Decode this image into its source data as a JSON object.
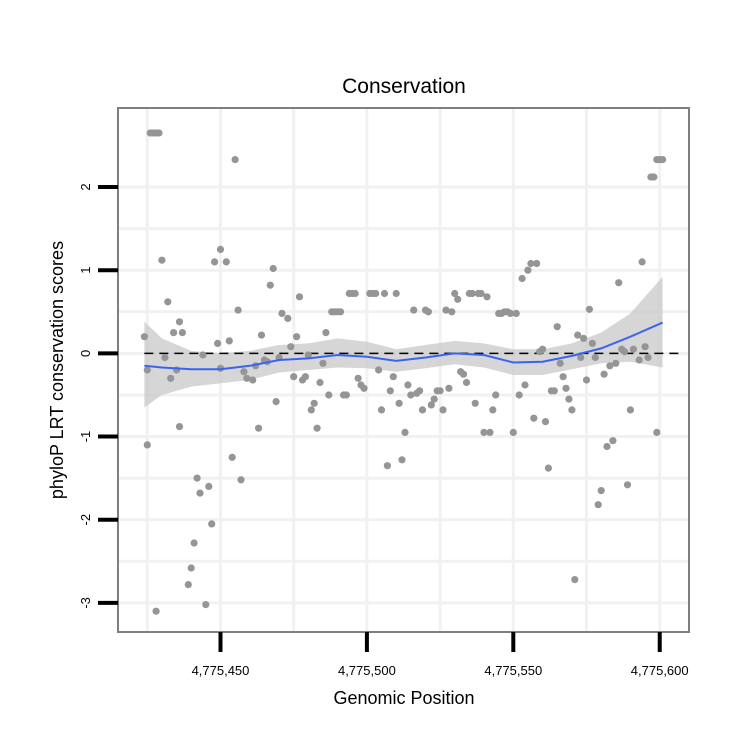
{
  "chart_data": {
    "type": "scatter",
    "title": "Conservation",
    "xlabel": "Genomic Position",
    "ylabel": "phyloP LRT conservation scores",
    "xlim": [
      4775415,
      4775610
    ],
    "ylim": [
      -3.35,
      2.95
    ],
    "x_ticks": [
      4775450,
      4775500,
      4775550,
      4775600
    ],
    "x_tick_labels": [
      "4,775,450",
      "4,775,500",
      "4,775,550",
      "4,775,600"
    ],
    "y_ticks": [
      2,
      1,
      0,
      -1,
      -2,
      -3
    ],
    "y_tick_labels": [
      "2",
      "1",
      "0",
      "-1",
      "-2",
      "-3"
    ],
    "reference_line": {
      "y": 0,
      "style": "dashed"
    },
    "grid": true,
    "points": [
      [
        4775424,
        0.2
      ],
      [
        4775425,
        -0.2
      ],
      [
        4775425,
        -1.1
      ],
      [
        4775426,
        2.65
      ],
      [
        4775427,
        2.65
      ],
      [
        4775428,
        2.65
      ],
      [
        4775428,
        -3.1
      ],
      [
        4775429,
        2.65
      ],
      [
        4775430,
        1.12
      ],
      [
        4775431,
        -0.05
      ],
      [
        4775432,
        0.62
      ],
      [
        4775433,
        -0.3
      ],
      [
        4775434,
        0.25
      ],
      [
        4775435,
        -0.2
      ],
      [
        4775436,
        -0.88
      ],
      [
        4775436,
        0.38
      ],
      [
        4775437,
        0.25
      ],
      [
        4775439,
        -2.78
      ],
      [
        4775440,
        -2.58
      ],
      [
        4775441,
        -2.28
      ],
      [
        4775442,
        -1.5
      ],
      [
        4775443,
        -1.68
      ],
      [
        4775444,
        -0.02
      ],
      [
        4775445,
        -3.02
      ],
      [
        4775446,
        -1.6
      ],
      [
        4775447,
        -2.05
      ],
      [
        4775448,
        1.1
      ],
      [
        4775449,
        0.12
      ],
      [
        4775450,
        1.25
      ],
      [
        4775450,
        -0.18
      ],
      [
        4775452,
        1.1
      ],
      [
        4775453,
        0.15
      ],
      [
        4775454,
        -1.25
      ],
      [
        4775455,
        2.33
      ],
      [
        4775456,
        0.52
      ],
      [
        4775457,
        -1.52
      ],
      [
        4775458,
        -0.22
      ],
      [
        4775459,
        -0.3
      ],
      [
        4775461,
        -0.32
      ],
      [
        4775462,
        -0.15
      ],
      [
        4775463,
        -0.9
      ],
      [
        4775464,
        0.22
      ],
      [
        4775465,
        -0.08
      ],
      [
        4775466,
        -0.1
      ],
      [
        4775467,
        0.82
      ],
      [
        4775468,
        1.02
      ],
      [
        4775469,
        -0.58
      ],
      [
        4775470,
        -0.05
      ],
      [
        4775471,
        0.48
      ],
      [
        4775473,
        0.42
      ],
      [
        4775474,
        0.08
      ],
      [
        4775475,
        -0.28
      ],
      [
        4775476,
        0.2
      ],
      [
        4775477,
        0.68
      ],
      [
        4775478,
        -0.32
      ],
      [
        4775479,
        -0.28
      ],
      [
        4775480,
        -0.02
      ],
      [
        4775481,
        -0.68
      ],
      [
        4775482,
        -0.6
      ],
      [
        4775483,
        -0.9
      ],
      [
        4775484,
        -0.35
      ],
      [
        4775485,
        -0.12
      ],
      [
        4775486,
        0.25
      ],
      [
        4775487,
        -0.5
      ],
      [
        4775488,
        0.5
      ],
      [
        4775489,
        0.5
      ],
      [
        4775490,
        0.5
      ],
      [
        4775491,
        0.5
      ],
      [
        4775492,
        -0.5
      ],
      [
        4775493,
        -0.5
      ],
      [
        4775494,
        0.72
      ],
      [
        4775495,
        0.72
      ],
      [
        4775496,
        0.72
      ],
      [
        4775497,
        -0.3
      ],
      [
        4775498,
        -0.38
      ],
      [
        4775499,
        -0.42
      ],
      [
        4775501,
        0.72
      ],
      [
        4775502,
        0.72
      ],
      [
        4775503,
        0.72
      ],
      [
        4775504,
        -0.2
      ],
      [
        4775505,
        -0.68
      ],
      [
        4775506,
        0.72
      ],
      [
        4775507,
        -1.35
      ],
      [
        4775508,
        -0.45
      ],
      [
        4775509,
        -0.28
      ],
      [
        4775510,
        0.72
      ],
      [
        4775511,
        -0.6
      ],
      [
        4775512,
        -1.28
      ],
      [
        4775513,
        -0.95
      ],
      [
        4775514,
        -0.38
      ],
      [
        4775515,
        -0.5
      ],
      [
        4775516,
        0.52
      ],
      [
        4775517,
        -0.48
      ],
      [
        4775518,
        -0.45
      ],
      [
        4775519,
        -0.68
      ],
      [
        4775520,
        0.52
      ],
      [
        4775521,
        0.5
      ],
      [
        4775522,
        -0.62
      ],
      [
        4775523,
        -0.55
      ],
      [
        4775524,
        -0.45
      ],
      [
        4775525,
        -0.45
      ],
      [
        4775526,
        -0.68
      ],
      [
        4775527,
        0.52
      ],
      [
        4775528,
        -0.42
      ],
      [
        4775529,
        0.5
      ],
      [
        4775530,
        0.72
      ],
      [
        4775531,
        0.65
      ],
      [
        4775532,
        -0.22
      ],
      [
        4775533,
        -0.25
      ],
      [
        4775534,
        -0.35
      ],
      [
        4775535,
        0.72
      ],
      [
        4775536,
        0.72
      ],
      [
        4775537,
        -0.6
      ],
      [
        4775538,
        0.72
      ],
      [
        4775539,
        0.72
      ],
      [
        4775540,
        -0.95
      ],
      [
        4775541,
        0.68
      ],
      [
        4775542,
        -0.95
      ],
      [
        4775543,
        -0.68
      ],
      [
        4775544,
        -0.5
      ],
      [
        4775545,
        0.48
      ],
      [
        4775546,
        0.48
      ],
      [
        4775547,
        0.5
      ],
      [
        4775548,
        0.5
      ],
      [
        4775549,
        0.48
      ],
      [
        4775550,
        -0.95
      ],
      [
        4775551,
        0.48
      ],
      [
        4775552,
        -0.5
      ],
      [
        4775553,
        0.9
      ],
      [
        4775554,
        -0.38
      ],
      [
        4775555,
        1.0
      ],
      [
        4775556,
        1.08
      ],
      [
        4775557,
        -0.78
      ],
      [
        4775558,
        1.08
      ],
      [
        4775559,
        0.02
      ],
      [
        4775560,
        0.05
      ],
      [
        4775561,
        -0.82
      ],
      [
        4775562,
        -1.38
      ],
      [
        4775563,
        -0.45
      ],
      [
        4775564,
        -0.45
      ],
      [
        4775565,
        0.32
      ],
      [
        4775566,
        -0.12
      ],
      [
        4775567,
        -0.28
      ],
      [
        4775568,
        -0.42
      ],
      [
        4775569,
        -0.55
      ],
      [
        4775570,
        -0.68
      ],
      [
        4775571,
        -2.72
      ],
      [
        4775572,
        0.22
      ],
      [
        4775573,
        -0.05
      ],
      [
        4775574,
        0.18
      ],
      [
        4775575,
        -0.32
      ],
      [
        4775576,
        0.53
      ],
      [
        4775577,
        0.12
      ],
      [
        4775578,
        -0.05
      ],
      [
        4775579,
        -1.82
      ],
      [
        4775580,
        -1.65
      ],
      [
        4775581,
        -0.25
      ],
      [
        4775582,
        -1.12
      ],
      [
        4775583,
        -0.15
      ],
      [
        4775584,
        -1.05
      ],
      [
        4775585,
        -0.12
      ],
      [
        4775586,
        0.85
      ],
      [
        4775587,
        0.05
      ],
      [
        4775588,
        0.02
      ],
      [
        4775589,
        -1.58
      ],
      [
        4775590,
        -0.68
      ],
      [
        4775591,
        0.05
      ],
      [
        4775593,
        -0.08
      ],
      [
        4775594,
        1.1
      ],
      [
        4775595,
        0.08
      ],
      [
        4775596,
        -0.05
      ],
      [
        4775597,
        2.12
      ],
      [
        4775598,
        2.12
      ],
      [
        4775599,
        -0.95
      ],
      [
        4775599,
        2.33
      ],
      [
        4775600,
        2.33
      ],
      [
        4775601,
        2.33
      ]
    ],
    "smooth": {
      "method": "loess",
      "x": [
        4775424,
        4775430,
        4775440,
        4775450,
        4775460,
        4775470,
        4775480,
        4775490,
        4775500,
        4775510,
        4775520,
        4775530,
        4775540,
        4775550,
        4775560,
        4775570,
        4775580,
        4775590,
        4775601
      ],
      "y": [
        -0.15,
        -0.17,
        -0.19,
        -0.19,
        -0.15,
        -0.08,
        -0.06,
        -0.02,
        -0.04,
        -0.09,
        -0.05,
        0.0,
        -0.02,
        -0.11,
        -0.1,
        -0.03,
        0.06,
        0.2,
        0.37
      ],
      "lower": [
        -0.65,
        -0.5,
        -0.4,
        -0.36,
        -0.32,
        -0.23,
        -0.2,
        -0.17,
        -0.18,
        -0.22,
        -0.18,
        -0.13,
        -0.17,
        -0.26,
        -0.26,
        -0.19,
        -0.12,
        -0.1,
        -0.17
      ],
      "upper": [
        0.38,
        0.18,
        0.03,
        0.0,
        0.03,
        0.1,
        0.12,
        0.18,
        0.14,
        0.05,
        0.1,
        0.15,
        0.12,
        0.05,
        0.05,
        0.12,
        0.25,
        0.48,
        0.92
      ]
    }
  }
}
